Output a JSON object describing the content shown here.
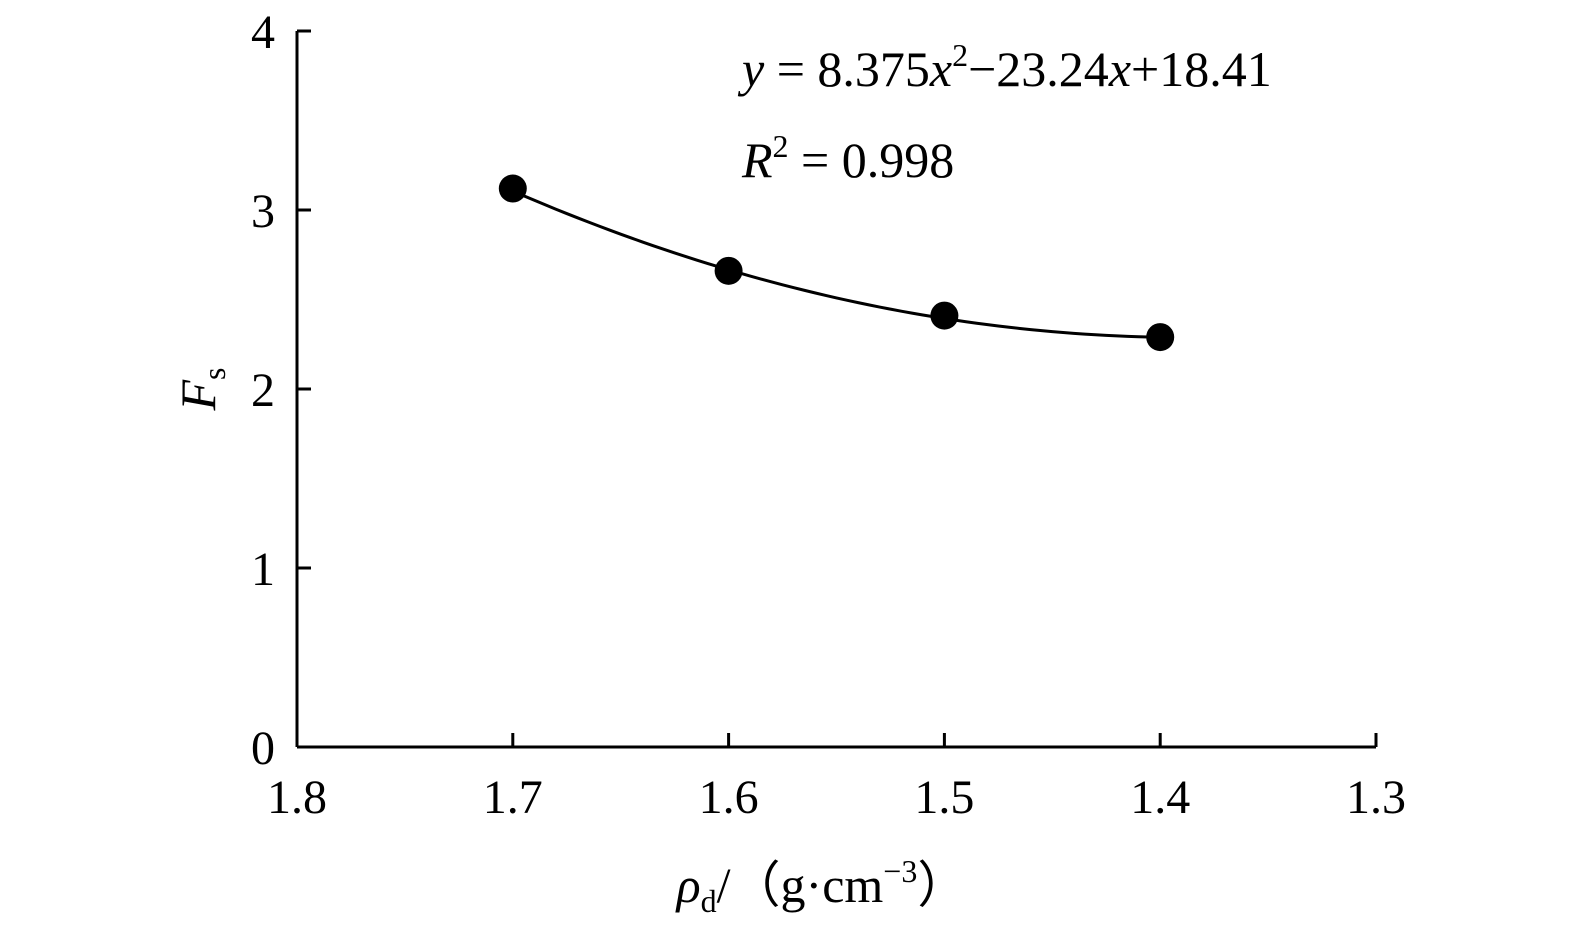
{
  "chart_data": {
    "type": "scatter",
    "x_axis": {
      "label_main": "ρ",
      "label_sub": "d",
      "label_rest": "/（g·cm",
      "label_sup": "−3",
      "label_close": "）",
      "range": [
        1.8,
        1.3
      ],
      "reversed": true,
      "ticks": [
        1.8,
        1.7,
        1.6,
        1.5,
        1.4,
        1.3
      ],
      "tick_labels": [
        "1.8",
        "1.7",
        "1.6",
        "1.5",
        "1.4",
        "1.3"
      ]
    },
    "y_axis": {
      "label_main": "F",
      "label_sub": "s",
      "range": [
        0,
        4
      ],
      "ticks": [
        0,
        1,
        2,
        3,
        4
      ],
      "tick_labels": [
        "0",
        "1",
        "2",
        "3",
        "4"
      ]
    },
    "points": [
      {
        "x": 1.7,
        "y": 3.12
      },
      {
        "x": 1.6,
        "y": 2.66
      },
      {
        "x": 1.5,
        "y": 2.41
      },
      {
        "x": 1.4,
        "y": 2.29
      }
    ],
    "fit": {
      "a": 8.375,
      "b": -23.24,
      "c": 18.41,
      "equation_parts": [
        "y",
        " = 8.375",
        "x",
        "2",
        "−23.24",
        "x",
        "+18.41"
      ],
      "r2_parts": [
        "R",
        "2",
        " = 0.998"
      ]
    },
    "grid": false,
    "legend": "none",
    "colors": {
      "points": "#000000",
      "curve": "#000000",
      "axes": "#000000"
    }
  }
}
